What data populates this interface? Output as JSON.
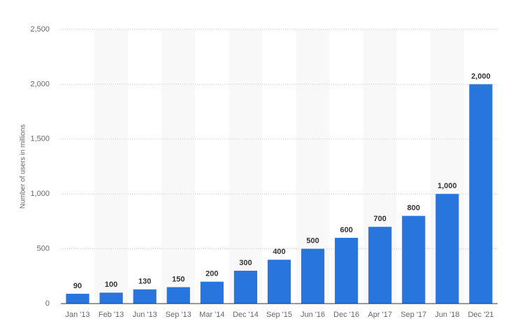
{
  "chart_data": {
    "type": "bar",
    "y_label": "Number of users in millions",
    "categories": [
      "Jan '13",
      "Feb '13",
      "Jun '13",
      "Sep '13",
      "Mar '14",
      "Dec '14",
      "Sep '15",
      "Jun '16",
      "Dec '16",
      "Apr '17",
      "Sep '17",
      "Jun '18",
      "Dec '21"
    ],
    "values": [
      90,
      100,
      130,
      150,
      200,
      300,
      400,
      500,
      600,
      700,
      800,
      1000,
      2000
    ],
    "value_labels": [
      "90",
      "100",
      "130",
      "150",
      "200",
      "300",
      "400",
      "500",
      "600",
      "700",
      "800",
      "1,000",
      "2,000"
    ],
    "color": "#2876dd",
    "ylim": [
      0,
      2500
    ],
    "yticks": [
      0,
      500,
      {
        "value": 1000,
        "label": "1,000"
      },
      {
        "value": 1500,
        "label": "1,500"
      },
      {
        "value": 2000,
        "label": "2,000"
      },
      {
        "value": 2500,
        "label": "2,500"
      }
    ],
    "grid": true
  }
}
